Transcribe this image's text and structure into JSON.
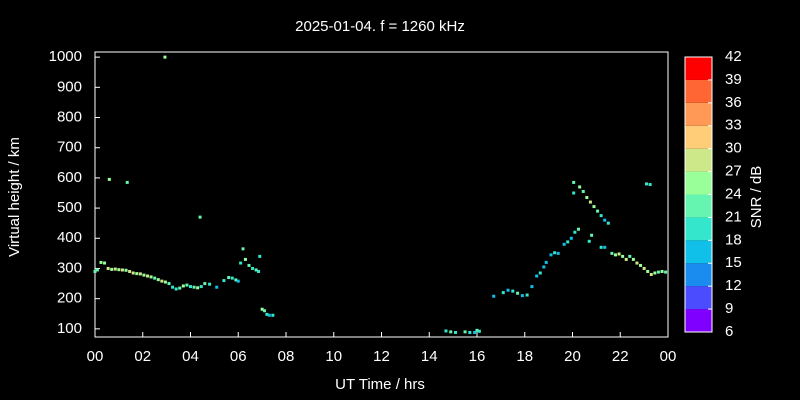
{
  "chart_data": {
    "type": "scatter",
    "title": "2025-01-04. f = 1260 kHz",
    "x_label": "UT Time / hrs",
    "y_label": "Virtual height / km",
    "xlim": [
      0,
      24
    ],
    "xticks": [
      {
        "value": 0,
        "label": "00"
      },
      {
        "value": 2,
        "label": "02"
      },
      {
        "value": 4,
        "label": "04"
      },
      {
        "value": 6,
        "label": "06"
      },
      {
        "value": 8,
        "label": "08"
      },
      10,
      12,
      14,
      16,
      18,
      20,
      22,
      {
        "value": 24,
        "label": "00"
      }
    ],
    "ylim": [
      73,
      1017
    ],
    "yticks": [
      100,
      200,
      300,
      400,
      500,
      600,
      700,
      800,
      900,
      1000
    ],
    "x": [
      0.0,
      0.1,
      0.25,
      0.4,
      0.55,
      0.7,
      0.85,
      1.0,
      1.15,
      1.3,
      1.45,
      1.6,
      1.75,
      1.9,
      2.05,
      2.2,
      2.35,
      2.5,
      2.65,
      2.8,
      2.95,
      3.1,
      3.25,
      3.4,
      3.55,
      3.7,
      3.85,
      4.0,
      4.15,
      4.3,
      4.45,
      4.6,
      4.8,
      5.1,
      5.4,
      5.6,
      5.75,
      5.9,
      6.0,
      6.1,
      6.2,
      6.3,
      6.45,
      6.6,
      6.75,
      6.85,
      6.9,
      7.0,
      7.1,
      7.2,
      7.3,
      7.45,
      0.6,
      1.35,
      2.93,
      4.4,
      14.7,
      14.9,
      15.1,
      15.5,
      15.7,
      15.9,
      16.0,
      16.1,
      16.7,
      17.1,
      17.3,
      17.5,
      17.7,
      17.9,
      18.1,
      18.3,
      18.5,
      18.65,
      18.8,
      18.9,
      19.1,
      19.25,
      19.4,
      19.65,
      19.8,
      19.95,
      20.1,
      20.25,
      20.05,
      20.05,
      20.3,
      20.45,
      20.6,
      20.75,
      20.9,
      21.05,
      21.2,
      21.35,
      21.5,
      20.7,
      20.8,
      21.2,
      21.35,
      21.65,
      21.8,
      21.95,
      22.1,
      22.25,
      22.4,
      22.55,
      22.7,
      22.85,
      23.0,
      23.15,
      23.3,
      23.45,
      23.6,
      23.75,
      23.9,
      23.1,
      23.25
    ],
    "y": [
      290,
      295,
      320,
      318,
      300,
      297,
      298,
      296,
      295,
      294,
      290,
      285,
      283,
      282,
      278,
      275,
      272,
      268,
      263,
      258,
      255,
      250,
      238,
      232,
      235,
      242,
      245,
      240,
      238,
      236,
      240,
      250,
      248,
      238,
      260,
      270,
      268,
      262,
      258,
      318,
      365,
      330,
      310,
      300,
      295,
      290,
      340,
      165,
      160,
      148,
      145,
      145,
      595,
      585,
      1000,
      470,
      93,
      90,
      88,
      90,
      88,
      88,
      95,
      92,
      208,
      220,
      228,
      225,
      218,
      210,
      212,
      240,
      275,
      285,
      305,
      320,
      345,
      352,
      350,
      380,
      388,
      400,
      420,
      430,
      550,
      585,
      570,
      555,
      535,
      520,
      505,
      490,
      475,
      460,
      450,
      390,
      410,
      370,
      370,
      350,
      345,
      348,
      340,
      330,
      340,
      330,
      318,
      310,
      300,
      290,
      280,
      285,
      288,
      290,
      288,
      580,
      578
    ],
    "snr": [
      21,
      21,
      24,
      24,
      27,
      24,
      27,
      24,
      27,
      24,
      27,
      27,
      24,
      27,
      24,
      27,
      24,
      21,
      24,
      27,
      24,
      21,
      18,
      18,
      21,
      24,
      21,
      18,
      21,
      24,
      18,
      21,
      18,
      15,
      18,
      21,
      18,
      21,
      15,
      18,
      21,
      24,
      21,
      18,
      21,
      18,
      18,
      24,
      21,
      18,
      15,
      18,
      24,
      21,
      24,
      21,
      18,
      21,
      18,
      21,
      18,
      15,
      21,
      18,
      15,
      18,
      15,
      18,
      21,
      15,
      18,
      15,
      15,
      18,
      15,
      15,
      15,
      18,
      15,
      15,
      18,
      15,
      18,
      21,
      18,
      21,
      24,
      21,
      24,
      27,
      24,
      21,
      18,
      15,
      18,
      18,
      21,
      18,
      15,
      21,
      24,
      27,
      24,
      27,
      21,
      24,
      27,
      24,
      27,
      24,
      27,
      24,
      21,
      24,
      21,
      18,
      18
    ],
    "colorbar": {
      "label": "SNR / dB",
      "lim": [
        6,
        42
      ],
      "ticks": [
        6,
        9,
        12,
        15,
        18,
        21,
        24,
        27,
        30,
        33,
        36,
        39,
        42
      ],
      "colors": [
        "#8000ff",
        "#4c4cff",
        "#1a8cf0",
        "#10c0e8",
        "#33e6cc",
        "#66f5b0",
        "#99ff99",
        "#cce888",
        "#ffcc77",
        "#ff9955",
        "#ff6633",
        "#ff0000"
      ]
    }
  }
}
